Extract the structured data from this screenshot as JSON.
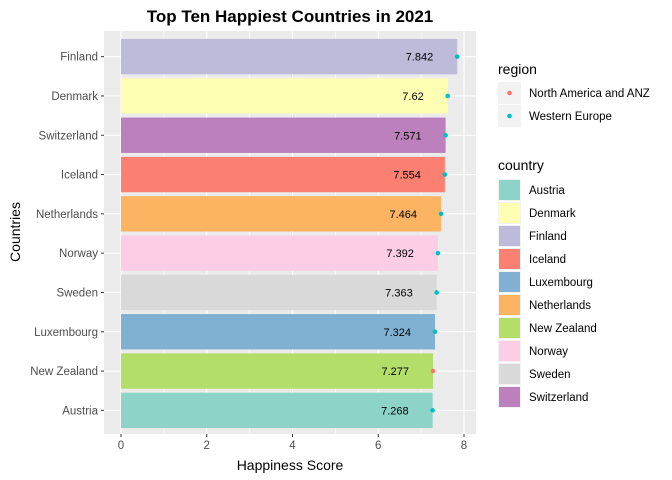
{
  "chart_data": {
    "type": "bar",
    "orientation": "horizontal",
    "title": "Top Ten Happiest Countries in 2021",
    "xlabel": "Happiness Score",
    "ylabel": "Countries",
    "xlim": [
      0,
      8
    ],
    "xticks": [
      0,
      2,
      4,
      6,
      8
    ],
    "grid": true,
    "categories": [
      "Austria",
      "New Zealand",
      "Luxembourg",
      "Sweden",
      "Norway",
      "Netherlands",
      "Iceland",
      "Switzerland",
      "Denmark",
      "Finland"
    ],
    "values": [
      7.268,
      7.277,
      7.324,
      7.363,
      7.392,
      7.464,
      7.554,
      7.571,
      7.62,
      7.842
    ],
    "value_labels": [
      "7.268",
      "7.277",
      "7.324",
      "7.363",
      "7.392",
      "7.464",
      "7.554",
      "7.571",
      "7.62",
      "7.842"
    ],
    "bar_colors": {
      "Austria": "#8DD3C7",
      "Denmark": "#FFFFB3",
      "Finland": "#BEBADA",
      "Iceland": "#FB8072",
      "Luxembourg": "#80B1D3",
      "Netherlands": "#FDB462",
      "New Zealand": "#B3DE69",
      "Norway": "#FCCDE5",
      "Sweden": "#D9D9D9",
      "Switzerland": "#BC80BD"
    },
    "point_region": [
      "Western Europe",
      "North America and ANZ",
      "Western Europe",
      "Western Europe",
      "Western Europe",
      "Western Europe",
      "Western Europe",
      "Western Europe",
      "Western Europe",
      "Western Europe"
    ],
    "region_colors": {
      "North America and ANZ": "#F8766D",
      "Western Europe": "#00BFC4"
    },
    "legend_position": "right",
    "legend_region": {
      "title": "region",
      "items": [
        "North America and ANZ",
        "Western Europe"
      ]
    },
    "legend_country": {
      "title": "country",
      "items": [
        "Austria",
        "Denmark",
        "Finland",
        "Iceland",
        "Luxembourg",
        "Netherlands",
        "New Zealand",
        "Norway",
        "Sweden",
        "Switzerland"
      ]
    }
  }
}
